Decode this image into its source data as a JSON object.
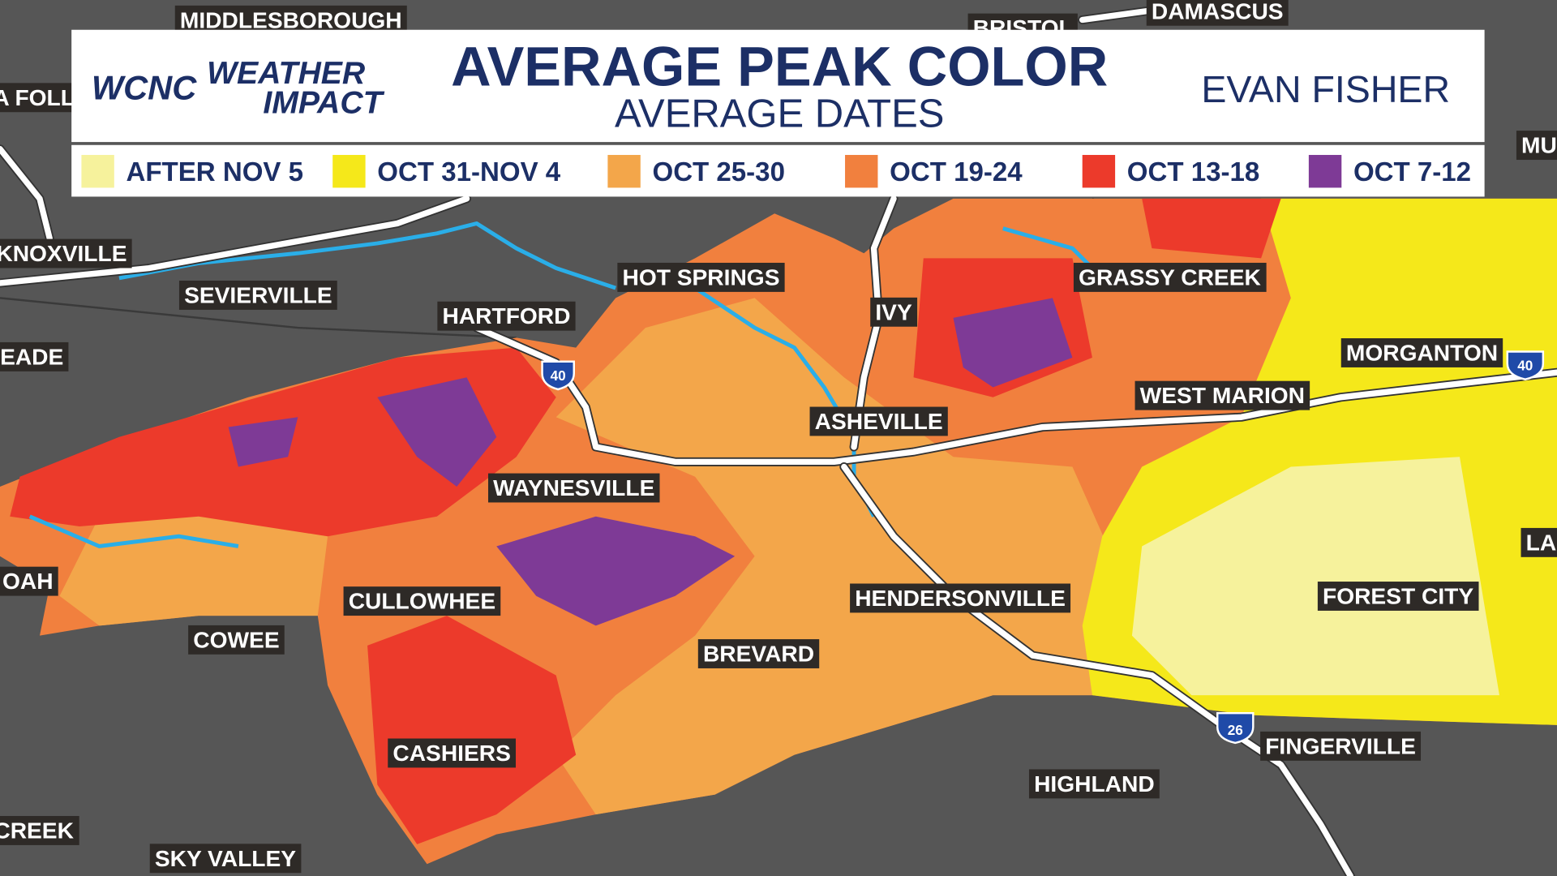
{
  "header": {
    "station": "WCNC",
    "brand_top": "WEATHER",
    "brand_bottom": "IMPACT",
    "title": "AVERAGE PEAK COLOR",
    "subtitle": "AVERAGE DATES",
    "presenter": "EVAN FISHER"
  },
  "legend": {
    "items": [
      {
        "label": "AFTER NOV 5",
        "color": "#f6f29c"
      },
      {
        "label": "OCT 31-NOV 4",
        "color": "#f5e81a"
      },
      {
        "label": "OCT 25-30",
        "color": "#f3a64a"
      },
      {
        "label": "OCT 19-24",
        "color": "#f1803e"
      },
      {
        "label": "OCT 13-18",
        "color": "#ec3a2b"
      },
      {
        "label": "OCT 7-12",
        "color": "#7e3a96"
      }
    ]
  },
  "places": [
    "MIDDLESBOROUGH",
    "BRISTOL",
    "DAMASCUS",
    "A FOLL",
    "MU",
    "KNOXVILLE",
    "SEVIERVILLE",
    "HOT SPRINGS",
    "GRASSY CREEK",
    "HARTFORD",
    "IVY",
    "EADE",
    "MORGANTON",
    "WEST MARION",
    "ASHEVILLE",
    "WAYNESVILLE",
    "OAH",
    "LA",
    "FOREST CITY",
    "CULLOWHEE",
    "HENDERSONVILLE",
    "COWEE",
    "BREVARD",
    "FINGERVILLE",
    "CASHIERS",
    "HIGHLAND",
    "CREEK",
    "SKY VALLEY"
  ],
  "highways": [
    "40",
    "40",
    "26"
  ]
}
